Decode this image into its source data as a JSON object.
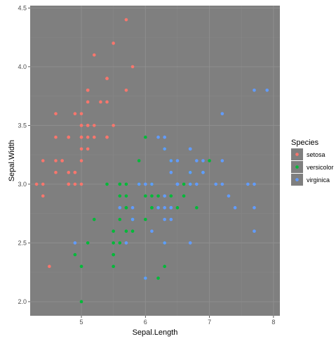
{
  "chart_data": {
    "type": "scatter",
    "xlabel": "Sepal.Length",
    "ylabel": "Sepal.Width",
    "xlim": [
      4.2,
      8.1
    ],
    "ylim": [
      1.88,
      4.52
    ],
    "x_ticks": [
      5,
      6,
      7,
      8
    ],
    "y_ticks": [
      2.0,
      2.5,
      3.0,
      3.5,
      4.0,
      4.5
    ],
    "x_tick_labels": [
      "5",
      "6",
      "7",
      "8"
    ],
    "y_tick_labels": [
      "2.0",
      "2.5",
      "3.0",
      "3.5",
      "4.0",
      "4.5"
    ],
    "grid": true,
    "legend": {
      "title": "Species",
      "placement": "right"
    },
    "series": [
      {
        "name": "setosa",
        "color": "#F8766D",
        "points": [
          [
            5.1,
            3.5
          ],
          [
            4.9,
            3.0
          ],
          [
            4.7,
            3.2
          ],
          [
            4.6,
            3.1
          ],
          [
            5.0,
            3.6
          ],
          [
            5.4,
            3.9
          ],
          [
            4.6,
            3.4
          ],
          [
            5.0,
            3.4
          ],
          [
            4.4,
            2.9
          ],
          [
            4.9,
            3.1
          ],
          [
            5.4,
            3.7
          ],
          [
            4.8,
            3.4
          ],
          [
            4.8,
            3.0
          ],
          [
            4.3,
            3.0
          ],
          [
            5.8,
            4.0
          ],
          [
            5.7,
            4.4
          ],
          [
            5.4,
            3.9
          ],
          [
            5.1,
            3.5
          ],
          [
            5.7,
            3.8
          ],
          [
            5.1,
            3.8
          ],
          [
            5.4,
            3.4
          ],
          [
            5.1,
            3.7
          ],
          [
            4.6,
            3.6
          ],
          [
            5.1,
            3.3
          ],
          [
            4.8,
            3.4
          ],
          [
            5.0,
            3.0
          ],
          [
            5.0,
            3.4
          ],
          [
            5.2,
            3.5
          ],
          [
            5.2,
            3.4
          ],
          [
            4.7,
            3.2
          ],
          [
            4.8,
            3.1
          ],
          [
            5.4,
            3.4
          ],
          [
            5.2,
            4.1
          ],
          [
            5.5,
            4.2
          ],
          [
            4.9,
            3.1
          ],
          [
            5.0,
            3.2
          ],
          [
            5.5,
            3.5
          ],
          [
            4.9,
            3.6
          ],
          [
            4.4,
            3.0
          ],
          [
            5.1,
            3.4
          ],
          [
            5.0,
            3.5
          ],
          [
            4.5,
            2.3
          ],
          [
            4.4,
            3.2
          ],
          [
            5.0,
            3.5
          ],
          [
            5.1,
            3.8
          ],
          [
            4.8,
            3.0
          ],
          [
            5.1,
            3.8
          ],
          [
            4.6,
            3.2
          ],
          [
            5.3,
            3.7
          ],
          [
            5.0,
            3.3
          ]
        ]
      },
      {
        "name": "versicolor",
        "color": "#00BA38",
        "points": [
          [
            7.0,
            3.2
          ],
          [
            6.4,
            3.2
          ],
          [
            6.9,
            3.1
          ],
          [
            5.5,
            2.3
          ],
          [
            6.5,
            2.8
          ],
          [
            5.7,
            2.8
          ],
          [
            6.3,
            3.3
          ],
          [
            4.9,
            2.4
          ],
          [
            6.6,
            2.9
          ],
          [
            5.2,
            2.7
          ],
          [
            5.0,
            2.0
          ],
          [
            5.9,
            3.0
          ],
          [
            6.0,
            2.2
          ],
          [
            6.1,
            2.9
          ],
          [
            5.6,
            2.9
          ],
          [
            6.7,
            3.1
          ],
          [
            5.6,
            3.0
          ],
          [
            5.8,
            2.7
          ],
          [
            6.2,
            2.2
          ],
          [
            5.6,
            2.5
          ],
          [
            5.9,
            3.2
          ],
          [
            6.1,
            2.8
          ],
          [
            6.3,
            2.5
          ],
          [
            6.1,
            2.8
          ],
          [
            6.4,
            2.9
          ],
          [
            6.6,
            3.0
          ],
          [
            6.8,
            2.8
          ],
          [
            6.7,
            3.0
          ],
          [
            6.0,
            2.9
          ],
          [
            5.7,
            2.6
          ],
          [
            5.5,
            2.4
          ],
          [
            5.5,
            2.4
          ],
          [
            5.8,
            2.7
          ],
          [
            6.0,
            2.7
          ],
          [
            5.4,
            3.0
          ],
          [
            6.0,
            3.4
          ],
          [
            6.7,
            3.1
          ],
          [
            6.3,
            2.3
          ],
          [
            5.6,
            3.0
          ],
          [
            5.5,
            2.5
          ],
          [
            5.5,
            2.6
          ],
          [
            6.1,
            3.0
          ],
          [
            5.8,
            2.6
          ],
          [
            5.0,
            2.3
          ],
          [
            5.6,
            2.7
          ],
          [
            5.7,
            3.0
          ],
          [
            5.7,
            2.9
          ],
          [
            6.2,
            2.9
          ],
          [
            5.1,
            2.5
          ],
          [
            5.7,
            2.8
          ]
        ]
      },
      {
        "name": "virginica",
        "color": "#619CFF",
        "points": [
          [
            6.3,
            3.3
          ],
          [
            5.8,
            2.7
          ],
          [
            7.1,
            3.0
          ],
          [
            6.3,
            2.9
          ],
          [
            6.5,
            3.0
          ],
          [
            7.6,
            3.0
          ],
          [
            4.9,
            2.5
          ],
          [
            7.3,
            2.9
          ],
          [
            6.7,
            2.5
          ],
          [
            7.2,
            3.6
          ],
          [
            6.5,
            3.2
          ],
          [
            6.4,
            2.7
          ],
          [
            6.8,
            3.0
          ],
          [
            5.7,
            2.5
          ],
          [
            5.8,
            2.8
          ],
          [
            6.4,
            3.2
          ],
          [
            6.5,
            3.0
          ],
          [
            7.7,
            3.8
          ],
          [
            7.7,
            2.6
          ],
          [
            6.0,
            2.2
          ],
          [
            6.9,
            3.2
          ],
          [
            5.6,
            2.8
          ],
          [
            7.7,
            2.8
          ],
          [
            6.3,
            2.7
          ],
          [
            6.7,
            3.3
          ],
          [
            7.2,
            3.2
          ],
          [
            6.2,
            2.8
          ],
          [
            6.1,
            3.0
          ],
          [
            6.4,
            2.8
          ],
          [
            7.2,
            3.0
          ],
          [
            7.4,
            2.8
          ],
          [
            7.9,
            3.8
          ],
          [
            6.4,
            2.8
          ],
          [
            6.3,
            2.8
          ],
          [
            6.1,
            2.6
          ],
          [
            7.7,
            3.0
          ],
          [
            6.3,
            3.4
          ],
          [
            6.4,
            3.1
          ],
          [
            6.0,
            3.0
          ],
          [
            6.9,
            3.1
          ],
          [
            6.7,
            3.1
          ],
          [
            6.9,
            3.1
          ],
          [
            5.8,
            2.7
          ],
          [
            6.8,
            3.2
          ],
          [
            6.7,
            3.3
          ],
          [
            6.7,
            3.0
          ],
          [
            6.3,
            2.5
          ],
          [
            6.5,
            3.0
          ],
          [
            6.2,
            3.4
          ],
          [
            5.9,
            3.0
          ]
        ]
      }
    ],
    "colors": {
      "panel_background": "#7f7f7f",
      "grid_major": "#8e8e8e",
      "grid_minor": "#888888",
      "legend_key_background": "#7f7f7f"
    }
  }
}
